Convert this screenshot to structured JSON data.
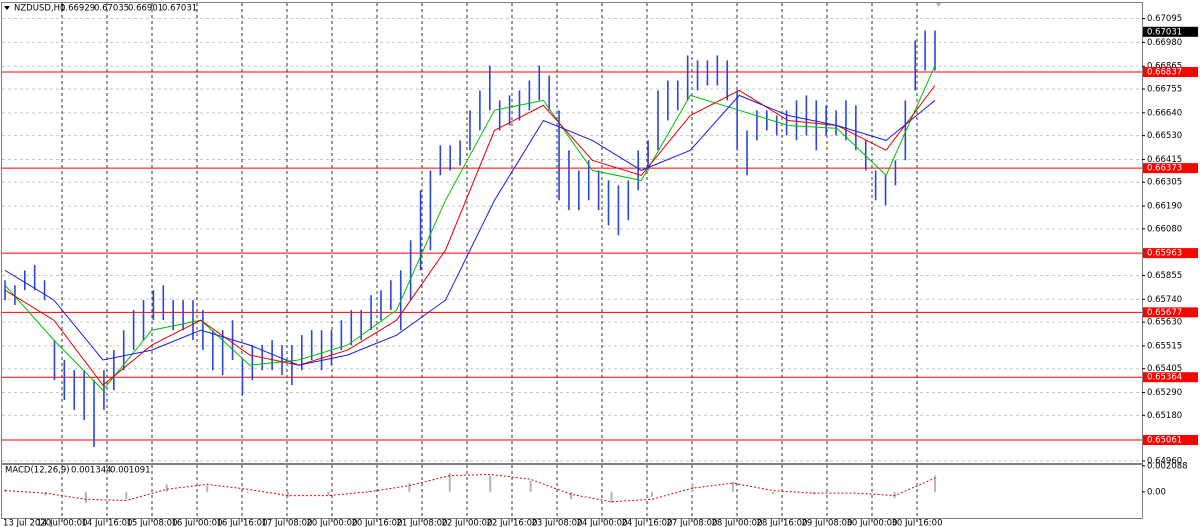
{
  "chart_data": [
    {
      "type": "range",
      "symbol": "NZDUSD,H1",
      "ohlc": [
        0.66929,
        0.67035,
        0.66901,
        0.67031
      ],
      "x_labels": [
        "13 Jul 2020",
        "14 Jul 00:00",
        "14 Jul 16:00",
        "15 Jul 08:00",
        "16 Jul 00:00",
        "16 Jul 16:00",
        "17 Jul 08:00",
        "20 Jul 00:00",
        "20 Jul 16:00",
        "21 Jul 08:00",
        "22 Jul 00:00",
        "22 Jul 16:00",
        "23 Jul 08:00",
        "24 Jul 00:00",
        "24 Jul 16:00",
        "27 Jul 08:00",
        "28 Jul 00:00",
        "28 Jul 16:00",
        "29 Jul 08:00",
        "30 Jul 00:00",
        "30 Jul 16:00"
      ],
      "low": [
        0.65736,
        0.65712,
        0.65784,
        0.65784,
        0.65736,
        0.6535,
        0.65254,
        0.65206,
        0.65157,
        0.65027,
        0.65206,
        0.65302,
        0.65398,
        0.65495,
        0.65543,
        0.65639,
        0.65639,
        0.65591,
        0.65591,
        0.65543,
        0.65495,
        0.65398,
        0.65374,
        0.65447,
        0.65278,
        0.6535,
        0.65398,
        0.65398,
        0.65374,
        0.65326,
        0.65398,
        0.65447,
        0.65398,
        0.65422,
        0.65495,
        0.65519,
        0.65543,
        0.65591,
        0.65639,
        0.65688,
        0.65591,
        0.65736,
        0.6588,
        0.65977,
        0.66338,
        0.66362,
        0.66386,
        0.66459,
        0.66555,
        0.66652,
        0.66555,
        0.66579,
        0.66603,
        0.66652,
        0.667,
        0.66652,
        0.66218,
        0.6617,
        0.6617,
        0.66218,
        0.6617,
        0.66097,
        0.66049,
        0.66121,
        0.66266,
        0.66362,
        0.66459,
        0.66603,
        0.66652,
        0.667,
        0.66748,
        0.66772,
        0.66772,
        0.667,
        0.66459,
        0.66338,
        0.66507,
        0.66555,
        0.66531,
        0.66531,
        0.66507,
        0.66531,
        0.66459,
        0.66531,
        0.66531,
        0.66507,
        0.66459,
        0.66362,
        0.66218,
        0.66194,
        0.6629,
        0.66411,
        0.66748,
        0.66844,
        0.66844
      ],
      "high": [
        0.65832,
        0.65808,
        0.6588,
        0.65905,
        0.65832,
        0.65543,
        0.65447,
        0.65398,
        0.65398,
        0.6535,
        0.65398,
        0.65495,
        0.65591,
        0.65688,
        0.65736,
        0.65784,
        0.65808,
        0.65736,
        0.65736,
        0.65736,
        0.65688,
        0.65591,
        0.65591,
        0.65639,
        0.65447,
        0.65519,
        0.65519,
        0.65543,
        0.65519,
        0.65519,
        0.65567,
        0.65591,
        0.65591,
        0.65591,
        0.65639,
        0.65688,
        0.65688,
        0.6576,
        0.65784,
        0.65832,
        0.6588,
        0.66025,
        0.66266,
        0.66362,
        0.66483,
        0.66483,
        0.66507,
        0.66652,
        0.66748,
        0.66868,
        0.667,
        0.66724,
        0.66748,
        0.66796,
        0.66868,
        0.6682,
        0.66652,
        0.66459,
        0.66362,
        0.66411,
        0.66362,
        0.66314,
        0.6629,
        0.66314,
        0.66459,
        0.66507,
        0.66748,
        0.66796,
        0.66796,
        0.66917,
        0.66893,
        0.66893,
        0.66917,
        0.66893,
        0.66748,
        0.66555,
        0.66652,
        0.66652,
        0.66627,
        0.66652,
        0.667,
        0.66724,
        0.667,
        0.66676,
        0.66652,
        0.667,
        0.66676,
        0.66507,
        0.66362,
        0.66338,
        0.66411,
        0.667,
        0.66989,
        0.67037,
        0.67037
      ],
      "color": "#2a46d8",
      "lines": [
        {
          "color": "#00c000",
          "values": [
            0.65808,
            0.65543,
            0.65302,
            0.65591,
            0.65639,
            0.65422,
            0.65447,
            0.65519,
            0.65688,
            0.66218,
            0.66652,
            0.667,
            0.66362,
            0.66314,
            0.66724,
            0.66652,
            0.66579,
            0.66565,
            0.66338,
            0.66868
          ]
        },
        {
          "color": "#e00000",
          "values": [
            0.65784,
            0.65639,
            0.65326,
            0.65519,
            0.65639,
            0.65471,
            0.65422,
            0.65495,
            0.65639,
            0.65977,
            0.66555,
            0.66676,
            0.66411,
            0.66338,
            0.66627,
            0.66748,
            0.66603,
            0.66579,
            0.66459,
            0.66772
          ]
        },
        {
          "color": "#1c1ce0",
          "values": [
            0.6588,
            0.65736,
            0.65447,
            0.65495,
            0.65591,
            0.65519,
            0.65422,
            0.65471,
            0.65567,
            0.65736,
            0.66218,
            0.66603,
            0.66507,
            0.66362,
            0.66459,
            0.66724,
            0.66627,
            0.66579,
            0.66507,
            0.667
          ]
        }
      ],
      "levels": [
        0.66837,
        0.66373,
        0.65963,
        0.65677,
        0.65364,
        0.65061
      ],
      "level_color": "#ff0000",
      "ylim": [
        0.6495,
        0.6717
      ],
      "yticks": [
        0.67095,
        {
          "value": 0.6698,
          "label": "0.66980"
        },
        0.66865,
        0.66755,
        {
          "value": 0.6664,
          "label": "0.66640"
        },
        {
          "value": 0.6653,
          "label": "0.66530"
        },
        0.66415,
        0.66305,
        {
          "value": 0.6619,
          "label": "0.66190"
        },
        {
          "value": 0.6608,
          "label": "0.66080"
        },
        0.65855,
        {
          "value": 0.6574,
          "label": "0.65740"
        },
        {
          "value": 0.6563,
          "label": "0.65630"
        },
        0.65515,
        0.65405,
        {
          "value": 0.6529,
          "label": "0.65290"
        },
        {
          "value": 0.6518,
          "label": "0.65180"
        },
        {
          "value": 0.6496,
          "label": "0.64960"
        }
      ],
      "grid": true
    },
    {
      "type": "macd",
      "indicator": "MACD(12,26,9)",
      "current": [
        0.001344,
        0.001091
      ],
      "histogram": [
        0.0002,
        -0.0003,
        -0.0009,
        -0.0006,
        0.0006,
        0.0005,
        -0.0001,
        -0.0004,
        -0.0003,
        0.0001,
        0.0007,
        0.0015,
        0.0013,
        0.0009,
        -0.0006,
        -0.0009,
        -0.0004,
        0.0007,
        0.0008,
        -0.0002,
        -0.0002,
        0.0,
        -0.0005,
        0.0013
      ],
      "signal": [
        0.0001,
        -0.0001,
        -0.0006,
        -0.0007,
        0.0002,
        0.0006,
        0.0002,
        -0.0003,
        -0.0003,
        0.0,
        0.0005,
        0.0013,
        0.0014,
        0.001,
        -0.0002,
        -0.0008,
        -0.0006,
        0.0003,
        0.0007,
        0.0001,
        -0.0001,
        -0.0001,
        -0.0003,
        0.0011
      ],
      "histogram_color": "#b4b4b4",
      "signal_color": "#e00000",
      "ylim": [
        -0.0021,
        0.00215
      ],
      "yticks": [
        0.002088,
        {
          "value": 0,
          "label": "0.00"
        }
      ]
    }
  ]
}
